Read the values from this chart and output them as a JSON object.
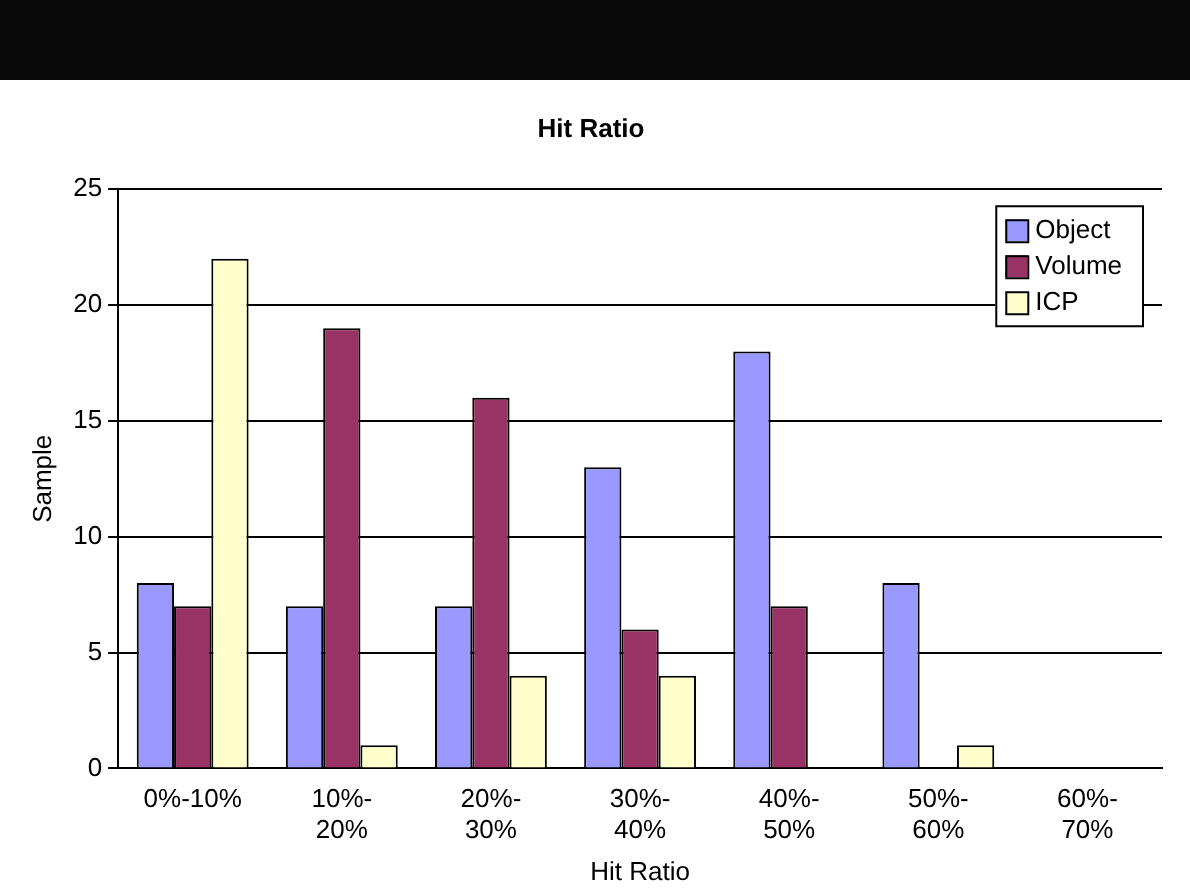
{
  "chart_data": {
    "type": "bar",
    "title": "Hit Ratio",
    "xlabel": "Hit Ratio",
    "ylabel": "Sample",
    "categories": [
      "0%-10%",
      "10%- 20%",
      "20%- 30%",
      "30%- 40%",
      "40%- 50%",
      "50%- 60%",
      "60%- 70%"
    ],
    "series": [
      {
        "name": "Object",
        "color": "#9999ff",
        "values": [
          8,
          7,
          7,
          13,
          18,
          8,
          0
        ]
      },
      {
        "name": "Volume",
        "color": "#993366",
        "values": [
          7,
          19,
          16,
          6,
          7,
          0,
          0
        ]
      },
      {
        "name": "ICP",
        "color": "#ffffcc",
        "values": [
          22,
          1,
          4,
          4,
          0,
          1,
          0
        ]
      }
    ],
    "ylim": [
      0,
      25
    ],
    "yticks": [
      0,
      5,
      10,
      15,
      20,
      25
    ],
    "grid": "y",
    "legend": "top right"
  }
}
